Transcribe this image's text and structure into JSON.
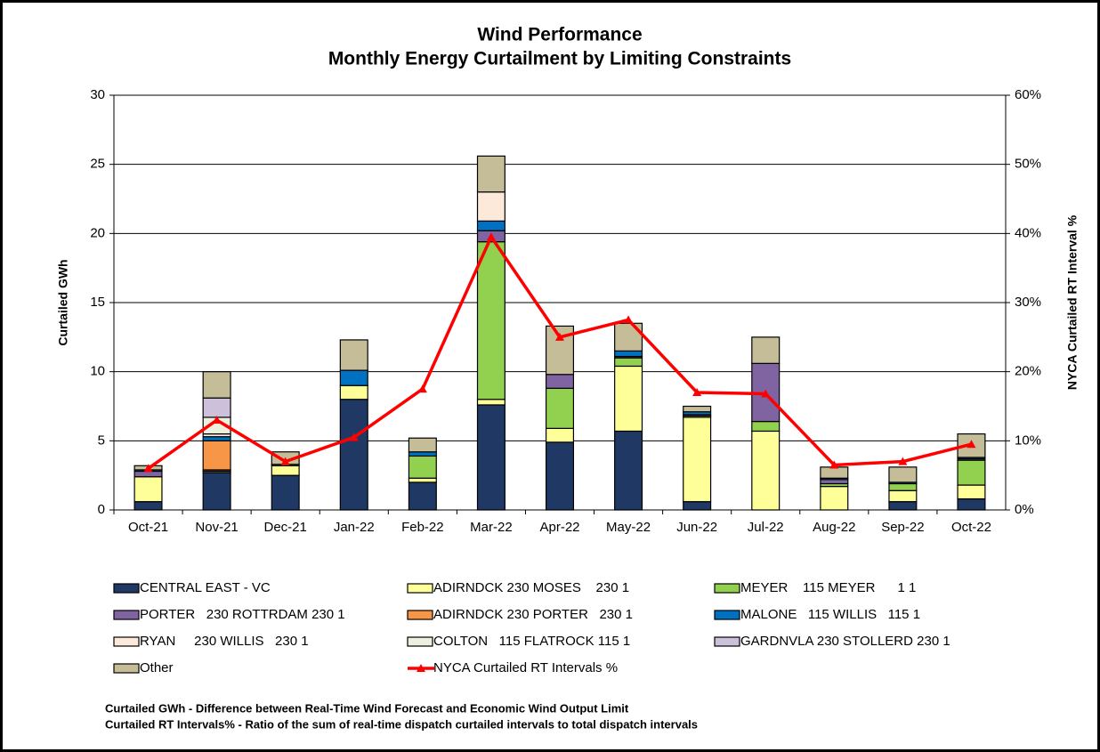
{
  "chart_data": {
    "type": "bar",
    "stacked": true,
    "title": "Wind Performance",
    "subtitle": "Monthly Energy Curtailment by Limiting Constraints",
    "ylabel": "Curtailed GWh",
    "y2label": "NYCA Curtailed RT Interval %",
    "categories": [
      "Oct-21",
      "Nov-21",
      "Dec-21",
      "Jan-22",
      "Feb-22",
      "Mar-22",
      "Apr-22",
      "May-22",
      "Jun-22",
      "Jul-22",
      "Aug-22",
      "Sep-22",
      "Oct-22"
    ],
    "ylim": [
      0,
      30
    ],
    "yticks": [
      0,
      5,
      10,
      15,
      20,
      25,
      30
    ],
    "y2lim": [
      0,
      60
    ],
    "y2ticks": [
      {
        "value": 0,
        "label": "0%"
      },
      {
        "value": 10,
        "label": "10%"
      },
      {
        "value": 20,
        "label": "20%"
      },
      {
        "value": 30,
        "label": "30%"
      },
      {
        "value": 40,
        "label": "40%"
      },
      {
        "value": 50,
        "label": "50%"
      },
      {
        "value": 60,
        "label": "60%"
      }
    ],
    "grid": true,
    "series": [
      {
        "name": "CENTRAL EAST - VC",
        "color": "#1f3864",
        "values": [
          0.6,
          2.7,
          2.5,
          8.0,
          2.0,
          7.6,
          4.9,
          5.7,
          0.6,
          0,
          0,
          0.6,
          0.8
        ]
      },
      {
        "name": "ADIRNDCK 230 MOSES    230 1",
        "color": "#ffff99",
        "values": [
          1.8,
          0.1,
          0.7,
          1.0,
          0.3,
          0.4,
          1.0,
          4.7,
          6.1,
          5.7,
          1.7,
          0.8,
          1.0
        ]
      },
      {
        "name": "MEYER    115 MEYER      1 1",
        "color": "#92d050",
        "values": [
          0,
          0,
          0.1,
          0,
          1.6,
          11.4,
          2.9,
          0.6,
          0.1,
          0.7,
          0.2,
          0.5,
          1.8
        ]
      },
      {
        "name": "PORTER   230 ROTTRDAM 230 1",
        "color": "#8064a2",
        "values": [
          0.4,
          0.1,
          0,
          0,
          0,
          0.8,
          1.0,
          0.1,
          0.1,
          4.2,
          0.3,
          0,
          0.1
        ]
      },
      {
        "name": "ADIRNDCK 230 PORTER   230 1",
        "color": "#f79646",
        "values": [
          0,
          2.1,
          0,
          0,
          0,
          0,
          0,
          0,
          0,
          0,
          0,
          0,
          0
        ]
      },
      {
        "name": "MALONE   115 WILLIS   115 1",
        "color": "#0070c0",
        "values": [
          0.1,
          0.3,
          0,
          1.1,
          0.3,
          0.7,
          0,
          0.4,
          0.2,
          0,
          0.1,
          0.1,
          0.1
        ]
      },
      {
        "name": "RYAN     230 WILLIS   230 1",
        "color": "#fde9d9",
        "values": [
          0,
          0.2,
          0,
          0,
          0,
          2.1,
          0,
          0,
          0,
          0,
          0,
          0,
          0
        ]
      },
      {
        "name": "COLTON   115 FLATROCK 115 1",
        "color": "#ebf1de",
        "values": [
          0,
          1.2,
          0,
          0,
          0,
          0,
          0,
          0,
          0,
          0,
          0,
          0,
          0
        ]
      },
      {
        "name": "GARDNVLA 230 STOLLERD 230 1",
        "color": "#ccc0da",
        "values": [
          0,
          1.4,
          0,
          0,
          0,
          0,
          0,
          0,
          0,
          0,
          0,
          0,
          0
        ]
      },
      {
        "name": "Other",
        "color": "#c4bd97",
        "values": [
          0.3,
          1.9,
          0.9,
          2.2,
          1.0,
          2.6,
          3.5,
          2.0,
          0.4,
          1.9,
          0.8,
          1.1,
          1.7
        ]
      },
      {
        "name": "NYCA Curtailed RT Intervals %",
        "color": "#ff0000",
        "axis": "y2",
        "values": [
          6,
          13,
          7,
          10.5,
          17.5,
          39.5,
          25,
          27.5,
          17,
          16.8,
          6.5,
          7,
          9.5
        ]
      }
    ],
    "notes": [
      "Curtailed GWh - Difference between Real-Time Wind Forecast and Economic Wind Output Limit",
      "Curtailed RT Intervals% - Ratio of the sum of real-time dispatch curtailed intervals to total dispatch intervals"
    ]
  }
}
